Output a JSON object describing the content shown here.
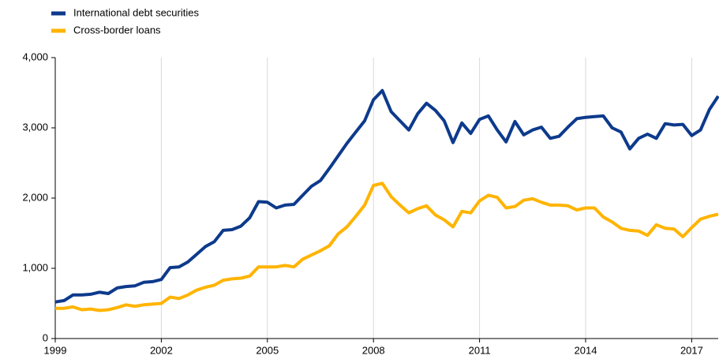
{
  "chart_data": {
    "type": "line",
    "x": [
      1999,
      1999.25,
      1999.5,
      1999.75,
      2000,
      2000.25,
      2000.5,
      2000.75,
      2001,
      2001.25,
      2001.5,
      2001.75,
      2002,
      2002.25,
      2002.5,
      2002.75,
      2003,
      2003.25,
      2003.5,
      2003.75,
      2004,
      2004.25,
      2004.5,
      2004.75,
      2005,
      2005.25,
      2005.5,
      2005.75,
      2006,
      2006.25,
      2006.5,
      2006.75,
      2007,
      2007.25,
      2007.5,
      2007.75,
      2008,
      2008.25,
      2008.5,
      2008.75,
      2009,
      2009.25,
      2009.5,
      2009.75,
      2010,
      2010.25,
      2010.5,
      2010.75,
      2011,
      2011.25,
      2011.5,
      2011.75,
      2012,
      2012.25,
      2012.5,
      2012.75,
      2013,
      2013.25,
      2013.5,
      2013.75,
      2014,
      2014.25,
      2014.5,
      2014.75,
      2015,
      2015.25,
      2015.5,
      2015.75,
      2016,
      2016.25,
      2016.5,
      2016.75,
      2017,
      2017.25,
      2017.5,
      2017.75
    ],
    "series": [
      {
        "name": "International debt securities",
        "color": "#0d3a8c",
        "values": [
          520,
          540,
          620,
          620,
          630,
          660,
          640,
          720,
          740,
          750,
          800,
          810,
          840,
          1010,
          1020,
          1090,
          1200,
          1310,
          1380,
          1540,
          1550,
          1600,
          1720,
          1950,
          1940,
          1860,
          1900,
          1910,
          2040,
          2170,
          2250,
          2420,
          2600,
          2780,
          2940,
          3100,
          3400,
          3530,
          3230,
          3100,
          2970,
          3200,
          3350,
          3250,
          3100,
          2790,
          3070,
          2920,
          3120,
          3170,
          2970,
          2800,
          3090,
          2900,
          2970,
          3010,
          2850,
          2880,
          3010,
          3130,
          3150,
          3160,
          3170,
          3000,
          2940,
          2700,
          2850,
          2910,
          2850,
          3060,
          3040,
          3050,
          2890,
          2970,
          3260,
          3450
        ]
      },
      {
        "name": "Cross-border loans",
        "color": "#ffb400",
        "values": [
          430,
          430,
          450,
          410,
          420,
          400,
          410,
          440,
          480,
          460,
          480,
          490,
          500,
          590,
          570,
          620,
          690,
          730,
          760,
          830,
          850,
          860,
          890,
          1020,
          1020,
          1020,
          1040,
          1020,
          1130,
          1190,
          1250,
          1320,
          1490,
          1590,
          1740,
          1900,
          2180,
          2210,
          2020,
          1900,
          1790,
          1850,
          1890,
          1760,
          1690,
          1590,
          1810,
          1790,
          1960,
          2040,
          2010,
          1860,
          1880,
          1970,
          1990,
          1940,
          1900,
          1900,
          1890,
          1830,
          1860,
          1860,
          1730,
          1660,
          1570,
          1540,
          1530,
          1470,
          1620,
          1570,
          1560,
          1450,
          1580,
          1700,
          1740,
          1770
        ]
      }
    ],
    "xlim": [
      1999,
      2017.75
    ],
    "xticks": [
      1999,
      2002,
      2005,
      2008,
      2011,
      2014,
      2017
    ],
    "ylim": [
      0,
      4000
    ],
    "yticks": [
      0,
      {
        "value": 1000,
        "label": "1,000"
      },
      {
        "value": 2000,
        "label": "2,000"
      },
      {
        "value": 3000,
        "label": "3,000"
      },
      {
        "value": 4000,
        "label": "4,000"
      }
    ],
    "grid": true,
    "legend": "top-left"
  }
}
